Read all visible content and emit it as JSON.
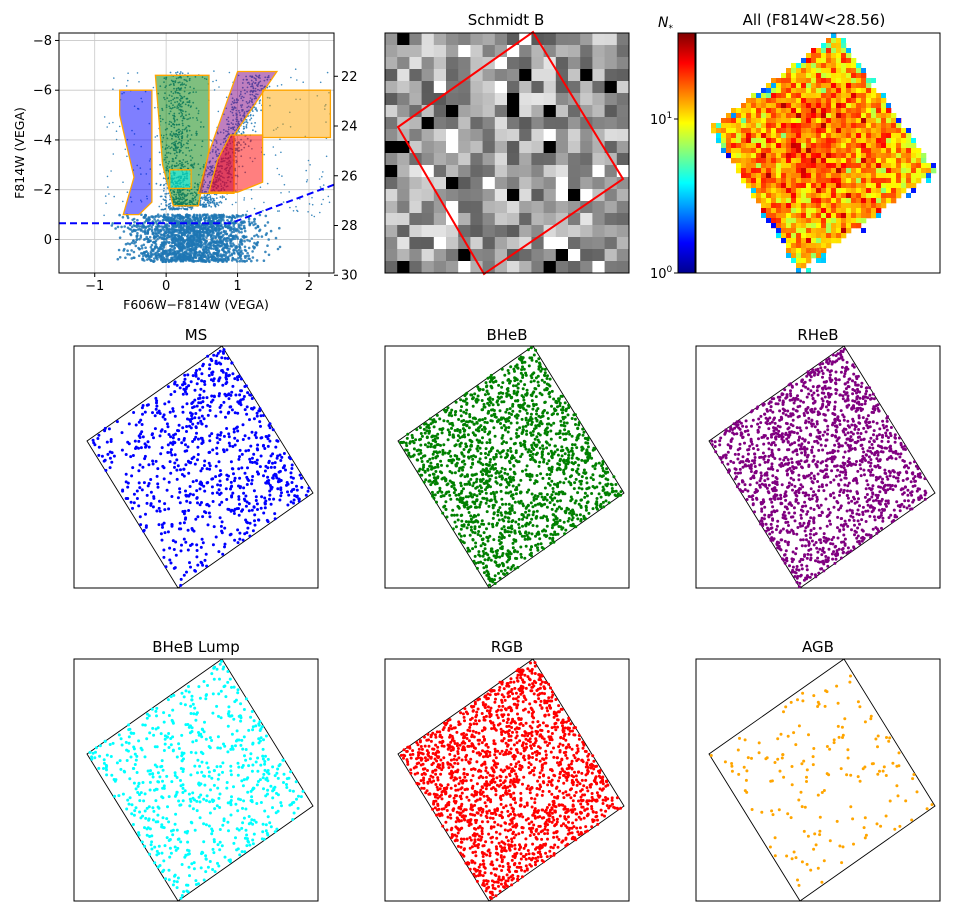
{
  "chart_data": [
    {
      "type": "scatter",
      "panel": "cmd",
      "title": "",
      "xlabel": "F606W−F814W (VEGA)",
      "ylabel": "F814W (VEGA)",
      "xlim": [
        -1.5,
        2.35
      ],
      "ylim": [
        1.35,
        -8.3
      ],
      "xticks": [
        -1,
        0,
        1,
        2
      ],
      "xtick_labels": [
        "−1",
        "0",
        "1",
        "2"
      ],
      "yticks": [
        0,
        -2,
        -4,
        -6,
        -8
      ],
      "ytick_labels": [
        "0",
        "−2",
        "−4",
        "−6",
        "−8"
      ],
      "y2_ticks": [
        22,
        24,
        26,
        28,
        30
      ],
      "y2_tick_labels": [
        "22",
        "24",
        "26",
        "28",
        "30"
      ],
      "y2_offset": 28.56,
      "grid": true,
      "completeness_line": [
        [
          -1.5,
          -0.65
        ],
        [
          0.9,
          -0.65
        ],
        [
          2.35,
          -2.2
        ]
      ],
      "point_color": "#1f77b4",
      "regions": [
        {
          "name": "MS",
          "color": "#0000ff",
          "vertices": [
            [
              -0.65,
              -6.0
            ],
            [
              -0.2,
              -6.0
            ],
            [
              -0.2,
              -1.5
            ],
            [
              -0.38,
              -1.0
            ],
            [
              -0.6,
              -1.0
            ],
            [
              -0.45,
              -2.5
            ],
            [
              -0.65,
              -5.0
            ]
          ]
        },
        {
          "name": "BHeB",
          "color": "#008000",
          "vertices": [
            [
              -0.15,
              -6.6
            ],
            [
              0.6,
              -6.6
            ],
            [
              0.6,
              -3.6
            ],
            [
              0.45,
              -1.35
            ],
            [
              0.1,
              -1.35
            ],
            [
              -0.05,
              -3.0
            ]
          ]
        },
        {
          "name": "RHeB",
          "color": "#800080",
          "vertices": [
            [
              1.0,
              -6.75
            ],
            [
              1.55,
              -6.75
            ],
            [
              0.95,
              -4.2
            ],
            [
              0.95,
              -1.85
            ],
            [
              0.45,
              -1.85
            ],
            [
              0.6,
              -3.5
            ]
          ]
        },
        {
          "name": "BHeB Lump",
          "color": "#00ffff",
          "vertices": [
            [
              0.05,
              -2.8
            ],
            [
              0.35,
              -2.8
            ],
            [
              0.35,
              -2.05
            ],
            [
              0.05,
              -2.05
            ]
          ]
        },
        {
          "name": "RGB",
          "color": "#ff0000",
          "vertices": [
            [
              0.9,
              -4.2
            ],
            [
              1.35,
              -4.2
            ],
            [
              1.35,
              -2.3
            ],
            [
              1.0,
              -1.9
            ],
            [
              0.6,
              -1.9
            ],
            [
              0.72,
              -3.2
            ]
          ]
        },
        {
          "name": "AGB",
          "color": "#ffa500",
          "vertices": [
            [
              1.35,
              -6.0
            ],
            [
              2.3,
              -6.0
            ],
            [
              2.3,
              -4.1
            ],
            [
              1.35,
              -4.1
            ]
          ]
        }
      ]
    },
    {
      "type": "heatmap",
      "panel": "schmidt",
      "title": "Schmidt B",
      "colormap": "gray",
      "footprint_color": "#ff0000"
    },
    {
      "type": "heatmap",
      "panel": "density",
      "title": "All (F814W<28.56)",
      "colormap": "jet",
      "colorbar_label": "N",
      "colorbar_label_sub": "*",
      "colorbar_scale": "log",
      "colorbar_range": [
        1,
        40
      ],
      "colorbar_tick_labels": [
        "10",
        "10"
      ],
      "colorbar_tick_exponents": [
        "0",
        "1"
      ]
    },
    {
      "type": "scatter",
      "panel": "ms",
      "title": "MS",
      "color": "#0000ff",
      "n_points": 850
    },
    {
      "type": "scatter",
      "panel": "bheb",
      "title": "BHeB",
      "color": "#008000",
      "n_points": 1800
    },
    {
      "type": "scatter",
      "panel": "rheb",
      "title": "RHeB",
      "color": "#800080",
      "n_points": 1700
    },
    {
      "type": "scatter",
      "panel": "lump",
      "title": "BHeB Lump",
      "color": "#00ffff",
      "n_points": 700
    },
    {
      "type": "scatter",
      "panel": "rgb",
      "title": "RGB",
      "color": "#ff0000",
      "n_points": 1900
    },
    {
      "type": "scatter",
      "panel": "agb",
      "title": "AGB",
      "color": "#ffa500",
      "n_points": 170
    }
  ]
}
